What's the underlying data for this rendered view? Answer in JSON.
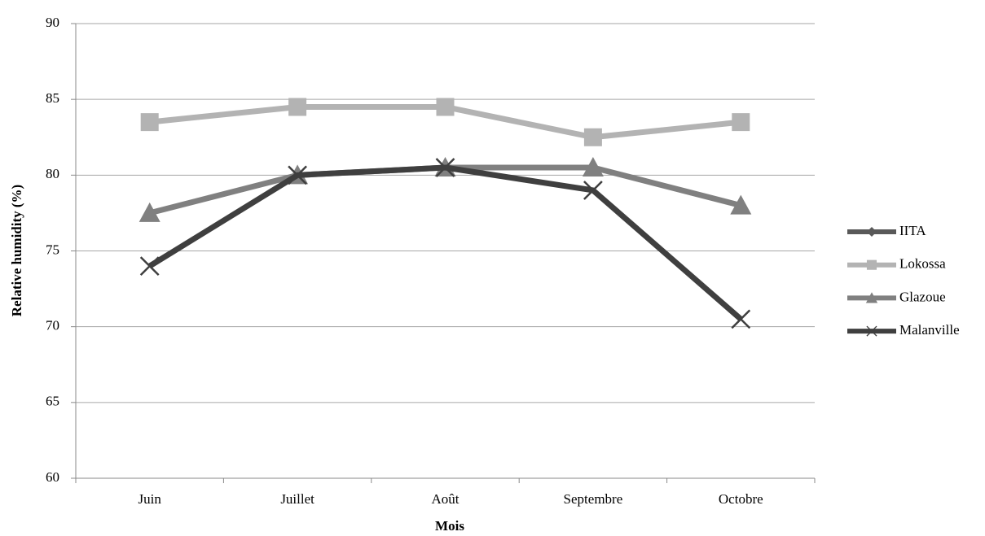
{
  "chart_data": {
    "type": "line",
    "x_label": "Mois",
    "y_label": "Relative humidity (%)",
    "categories": [
      "Juin",
      "Juillet",
      "Août",
      "Septembre",
      "Octobre"
    ],
    "series": [
      {
        "name": "IITA",
        "color": "#595959",
        "marker": "diamond",
        "values": [
          null,
          null,
          null,
          null,
          null
        ]
      },
      {
        "name": "Lokossa",
        "color": "#b3b3b3",
        "marker": "square",
        "values": [
          83.5,
          84.5,
          84.5,
          82.5,
          83.5
        ]
      },
      {
        "name": "Glazoue",
        "color": "#808080",
        "marker": "triangle",
        "values": [
          77.5,
          80,
          80.5,
          80.5,
          78
        ]
      },
      {
        "name": "Malanville",
        "color": "#3f3f3f",
        "marker": "x",
        "values": [
          74,
          80,
          80.5,
          79,
          70.5
        ]
      }
    ],
    "ylim": [
      60,
      90
    ],
    "yticks": [
      60,
      65,
      70,
      75,
      80,
      85,
      90
    ],
    "grid": true,
    "legend": "right"
  }
}
